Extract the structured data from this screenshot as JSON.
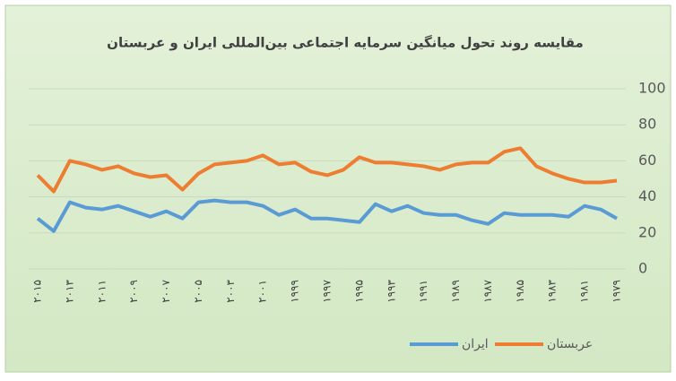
{
  "chart_data": {
    "type": "line",
    "title": "مقایسه روند تحول میانگین سرمایه اجتماعی بین‌المللی ایران و عربستان",
    "categories": [
      "۲۰۱۵",
      null,
      "۲۰۱۳",
      null,
      "۲۰۱۱",
      null,
      "۲۰۰۹",
      null,
      "۲۰۰۷",
      null,
      "۲۰۰۵",
      null,
      "۲۰۰۳",
      null,
      "۲۰۰۱",
      null,
      "۱۹۹۹",
      null,
      "۱۹۹۷",
      null,
      "۱۹۹۵",
      null,
      "۱۹۹۳",
      null,
      "۱۹۹۱",
      null,
      "۱۹۸۹",
      null,
      "۱۹۸۷",
      null,
      "۱۹۸۵",
      null,
      "۱۹۸۳",
      null,
      "۱۹۸۱",
      null,
      "۱۹۷۹"
    ],
    "series": [
      {
        "name": "ایران",
        "color": "#5b9bd5",
        "values": [
          28,
          21,
          37,
          34,
          33,
          35,
          32,
          29,
          32,
          28,
          37,
          38,
          37,
          37,
          35,
          30,
          33,
          28,
          28,
          27,
          26,
          36,
          32,
          35,
          31,
          30,
          30,
          27,
          25,
          31,
          30,
          30,
          30,
          29,
          35,
          33,
          28
        ]
      },
      {
        "name": "عربستان",
        "color": "#ed7d31",
        "values": [
          52,
          43,
          60,
          58,
          55,
          57,
          53,
          51,
          52,
          44,
          53,
          58,
          59,
          60,
          63,
          58,
          59,
          54,
          52,
          55,
          62,
          59,
          59,
          58,
          57,
          55,
          58,
          59,
          59,
          65,
          67,
          57,
          53,
          50,
          48,
          48,
          49
        ]
      }
    ],
    "ylim": [
      0,
      100
    ],
    "yticks": [
      0,
      20,
      40,
      60,
      80,
      100
    ],
    "grid": true,
    "legend": "bottom"
  }
}
